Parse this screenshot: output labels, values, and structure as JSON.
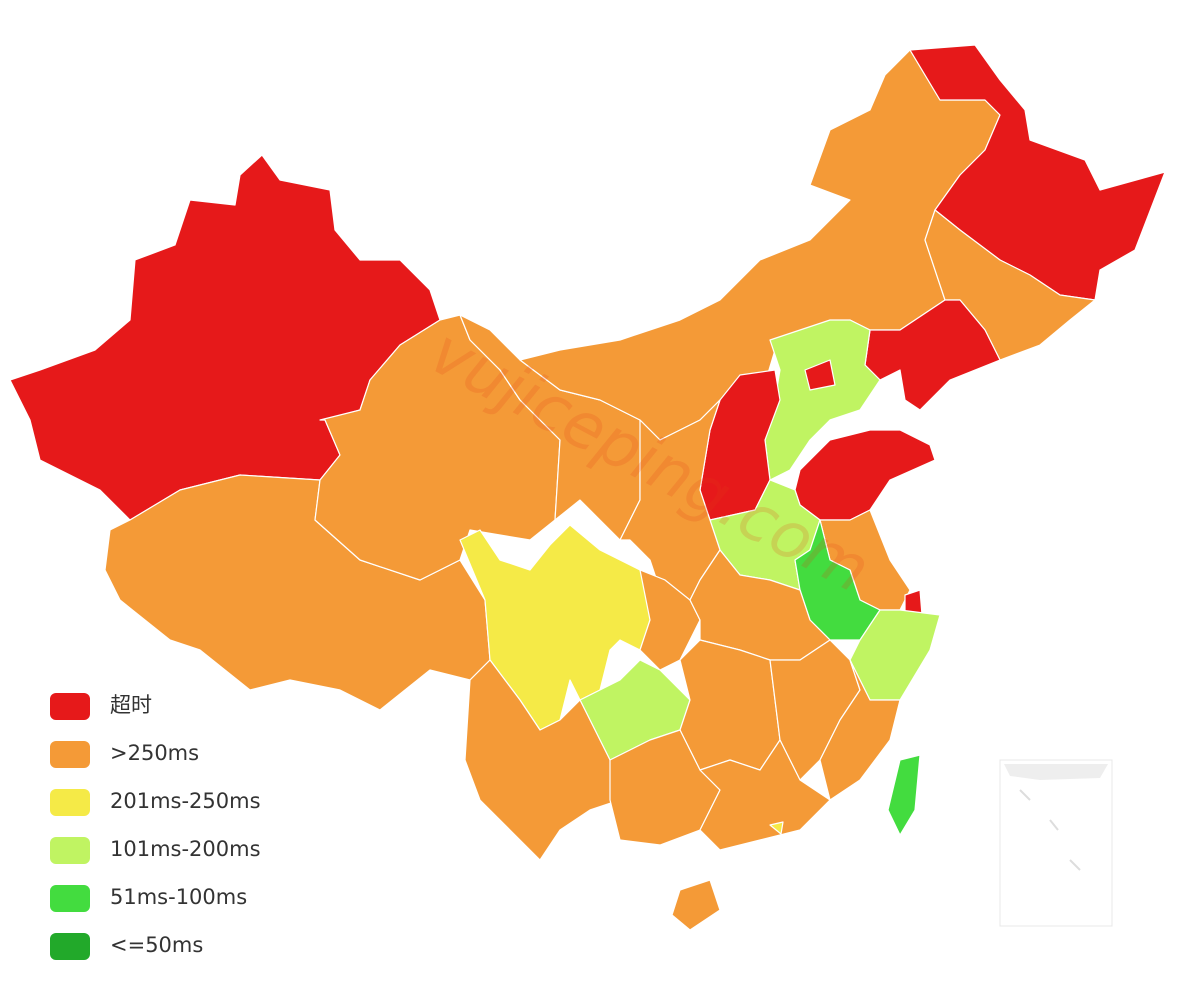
{
  "legend": [
    {
      "label": "超时",
      "color": "#e6191a"
    },
    {
      "label": ">250ms",
      "color": "#f49a37"
    },
    {
      "label": "201ms-250ms",
      "color": "#f5ea47"
    },
    {
      "label": "101ms-200ms",
      "color": "#c0f462"
    },
    {
      "label": "51ms-100ms",
      "color": "#43dc3f"
    },
    {
      "label": "<=50ms",
      "color": "#22a92a"
    }
  ],
  "watermark": "vujiceping.com"
}
